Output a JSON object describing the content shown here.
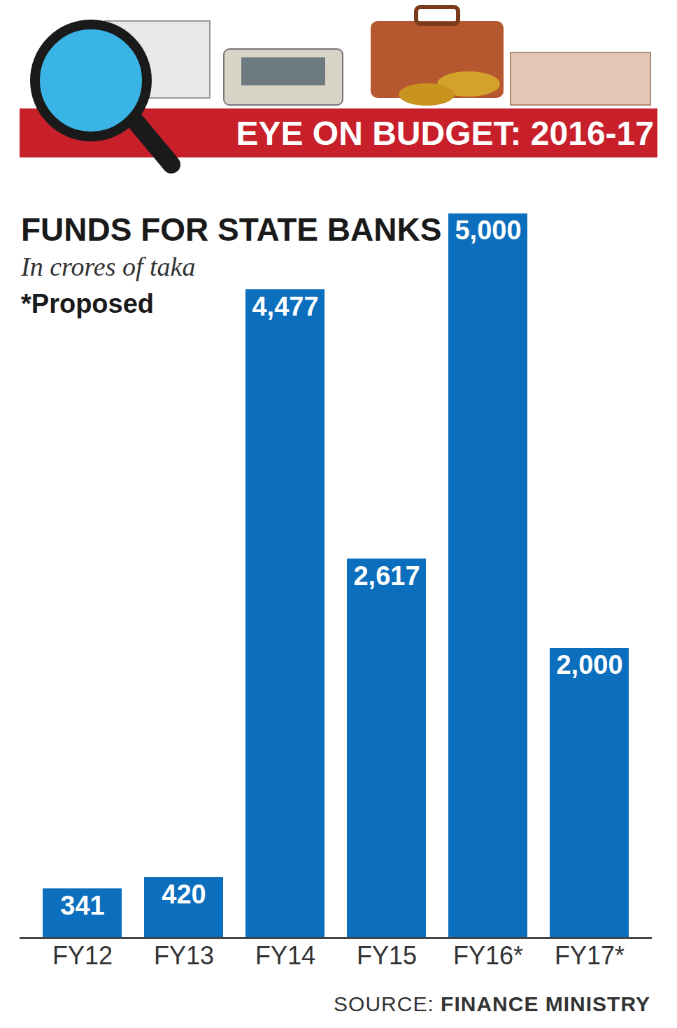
{
  "chart_data": {
    "type": "bar",
    "banner": "EYE ON BUDGET: 2016-17",
    "title": "FUNDS FOR STATE BANKS",
    "subtitle": "In crores of taka",
    "annotations": [
      "*Proposed"
    ],
    "source": "SOURCE: FINANCE MINISTRY",
    "categories": [
      "FY12",
      "FY13",
      "FY14",
      "FY15",
      "FY16*",
      "FY17*"
    ],
    "values": [
      341,
      420,
      4477,
      2617,
      5000,
      2000
    ],
    "value_labels": [
      "341",
      "420",
      "4,477",
      "2,617",
      "5,000",
      "2,000"
    ],
    "color": "#0b6fbe",
    "ylim": [
      0,
      5000
    ],
    "yticks": [],
    "grid": false,
    "data_labels": true,
    "tick_labels": "x"
  }
}
